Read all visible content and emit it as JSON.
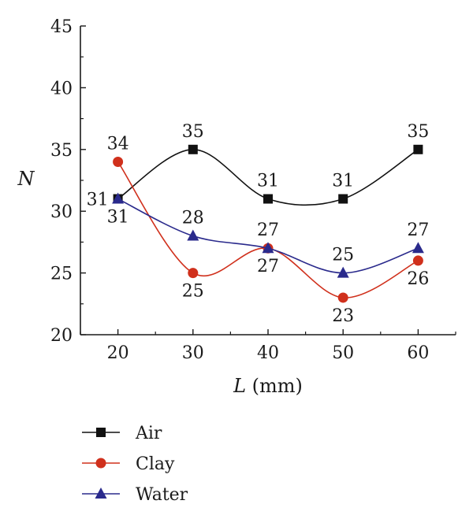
{
  "chart_data": {
    "type": "line",
    "xlabel_symbol": "L",
    "xlabel_unit": " (mm)",
    "ylabel": "N",
    "x": [
      20,
      30,
      40,
      50,
      60
    ],
    "xlim": [
      15,
      65
    ],
    "ylim": [
      20,
      45
    ],
    "yticks": [
      20,
      25,
      30,
      35,
      40,
      45
    ],
    "series": [
      {
        "name": "Air",
        "values": [
          31,
          35,
          31,
          31,
          35
        ],
        "color": "#111111",
        "marker": "square",
        "label_pos": [
          "left",
          "above",
          "above",
          "above",
          "above"
        ]
      },
      {
        "name": "Clay",
        "values": [
          34,
          25,
          27,
          23,
          26
        ],
        "color": "#d0301c",
        "marker": "circle",
        "label_pos": [
          "above",
          "below",
          "below",
          "below",
          "below"
        ]
      },
      {
        "name": "Water",
        "values": [
          31,
          28,
          27,
          25,
          27
        ],
        "color": "#2a2a8c",
        "marker": "triangle",
        "label_pos": [
          "below",
          "above",
          "above",
          "above",
          "above"
        ]
      }
    ],
    "legend_position": "bottom-left",
    "grid": false
  }
}
